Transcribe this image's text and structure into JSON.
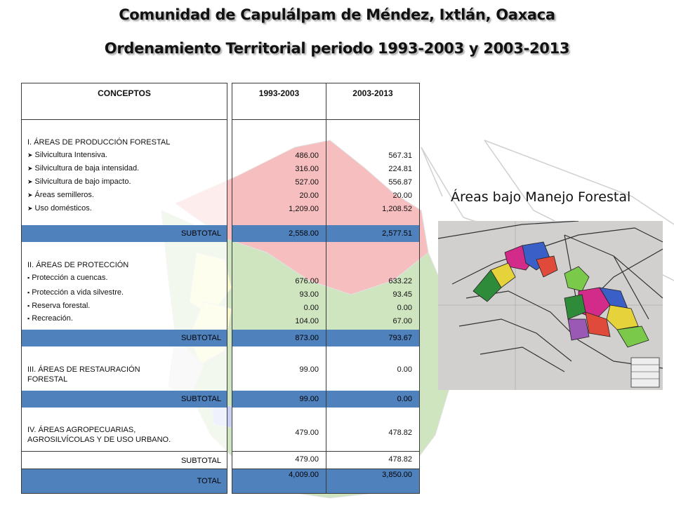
{
  "header": {
    "title": "Comunidad de Capulálpam de Méndez, Ixtlán, Oaxaca",
    "subtitle": "Ordenamiento Territorial periodo 1993-2003 y 2003-2013"
  },
  "table": {
    "col_concepts": "CONCEPTOS",
    "col_p1": "1993-2003",
    "col_p2": "2003-2013",
    "sec1": {
      "title": "I. ÁREAS DE PRODUCCIÓN  FORESTAL",
      "items": [
        {
          "label": "Silvicultura Intensiva.",
          "p1": "486.00",
          "p2": "567.31"
        },
        {
          "label": "Silvicultura de baja intensidad.",
          "p1": "316.00",
          "p2": "224.81"
        },
        {
          "label": "Silvicultura de bajo impacto.",
          "p1": "527.00",
          "p2": "556.87"
        },
        {
          "label": "Áreas semilleros.",
          "p1": "20.00",
          "p2": "20.00"
        },
        {
          "label": "Uso domésticos.",
          "p1": "1,209.00",
          "p2": "1,208.52"
        }
      ],
      "subtotal_label": "SUBTOTAL",
      "subtotal_p1": "2,558.00",
      "subtotal_p2": "2,577.51"
    },
    "sec2": {
      "title": "II. ÁREAS DE PROTECCIÓN",
      "items": [
        {
          "label": "Protección a cuencas.",
          "p1": "676.00",
          "p2": "633.22"
        },
        {
          "label": "Protección a vida silvestre.",
          "p1": "93.00",
          "p2": "93.45"
        },
        {
          "label": "Reserva forestal.",
          "p1": "0.00",
          "p2": "0.00"
        },
        {
          "label": "Recreación.",
          "p1": "104.00",
          "p2": "67.00"
        }
      ],
      "subtotal_label": "SUBTOTAL",
      "subtotal_p1": "873.00",
      "subtotal_p2": "793.67"
    },
    "sec3": {
      "title_line1": "III. ÁREAS DE RESTAURACIÓN",
      "title_line2": "FORESTAL",
      "p1": "99.00",
      "p2": "0.00",
      "subtotal_label": "SUBTOTAL",
      "subtotal_p1": "99.00",
      "subtotal_p2": "0.00"
    },
    "sec4": {
      "title_line1": "IV. ÁREAS AGROPECUARIAS,",
      "title_line2": "AGROSILVÍCOLAS Y DE USO URBANO.",
      "p1": "479.00",
      "p2": "478.82",
      "subtotal_label": "SUBTOTAL",
      "subtotal_p1": "479.00",
      "subtotal_p2": "478.82"
    },
    "total_label": "TOTAL",
    "total_p1": "4,009.00",
    "total_p2": "3,850.00"
  },
  "side_label": "Áreas bajo Manejo Forestal",
  "colors": {
    "accent_blue": "#4f81bd",
    "map_red": "#f08a8a",
    "map_green": "#a9d08e",
    "map_yellow": "#f6f59a"
  },
  "icons": {
    "bullet_sec1": "arrow-bullet-icon",
    "bullet_sec2": "square-bullet-icon"
  }
}
